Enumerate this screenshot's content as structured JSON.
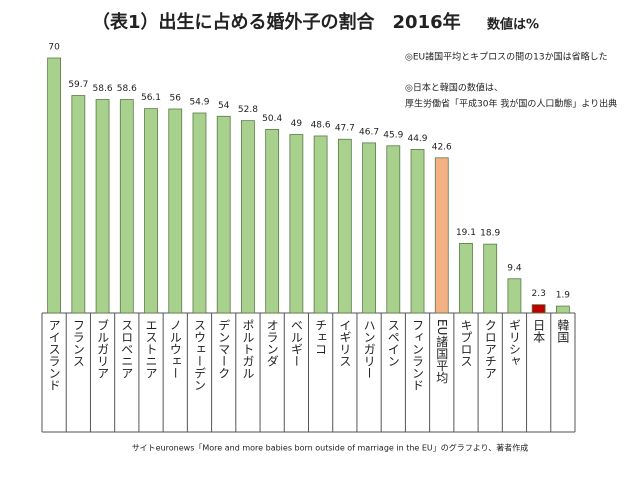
{
  "chart_data": {
    "type": "bar",
    "title": "（表1）出生に占める婚外子の割合　2016年",
    "subtitle": "数値は%",
    "notes": [
      "◎EU諸国平均とキプロスの間の13か国は省略した",
      "◎日本と韓国の数値は、",
      "厚生労働省「平成30年 我が国の人口動態」より出典"
    ],
    "source": "サイトeuronews「More and more babies born outside of marriage in the EU」のグラフより、著者作成",
    "categories": [
      "アイスランド",
      "フランス",
      "ブルガリア",
      "スロベニア",
      "エストニア",
      "ノルウェー",
      "スウェーデン",
      "デンマーク",
      "ポルトガル",
      "オランダ",
      "ベルギー",
      "チェコ",
      "イギリス",
      "ハンガリー",
      "スペイン",
      "フィンランド",
      "EU諸国平均",
      "キプロス",
      "クロアチア",
      "ギリシャ",
      "日本",
      "韓国"
    ],
    "values": [
      70,
      59.7,
      58.6,
      58.6,
      56.1,
      56,
      54.9,
      54,
      52.8,
      50.4,
      49,
      48.6,
      47.7,
      46.7,
      45.9,
      44.9,
      42.6,
      19.1,
      18.9,
      9.4,
      2.3,
      1.9
    ],
    "colors": [
      "#a9d18e",
      "#a9d18e",
      "#a9d18e",
      "#a9d18e",
      "#a9d18e",
      "#a9d18e",
      "#a9d18e",
      "#a9d18e",
      "#a9d18e",
      "#a9d18e",
      "#a9d18e",
      "#a9d18e",
      "#a9d18e",
      "#a9d18e",
      "#a9d18e",
      "#a9d18e",
      "#f4b183",
      "#a9d18e",
      "#a9d18e",
      "#a9d18e",
      "#c00000",
      "#a9d18e"
    ],
    "ylim": [
      0,
      70
    ]
  }
}
